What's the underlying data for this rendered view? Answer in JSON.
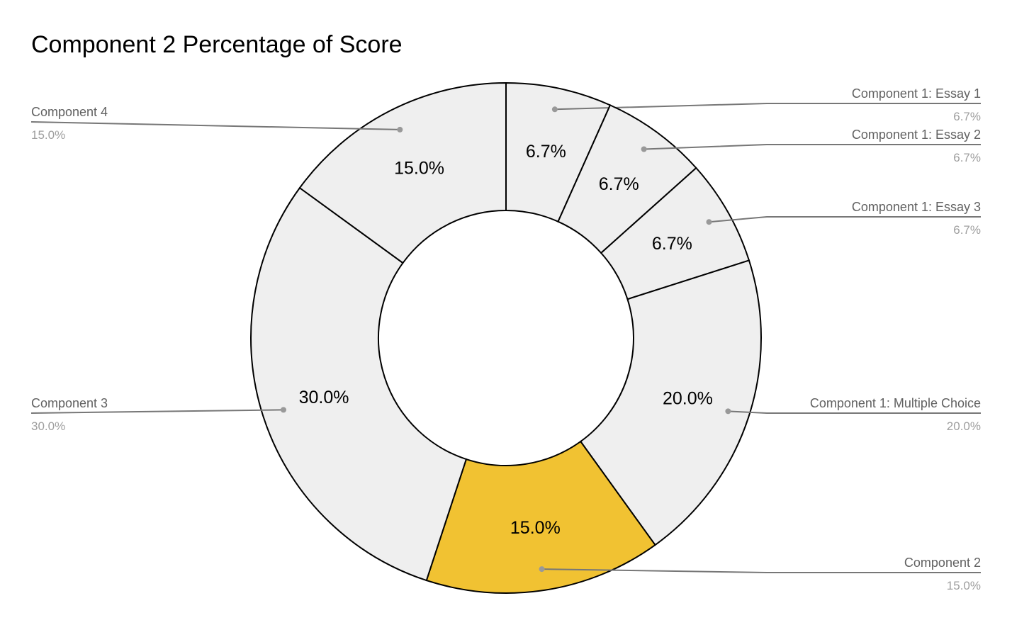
{
  "chart_data": {
    "type": "pie",
    "variant": "donut",
    "title": "Component 2 Percentage of Score",
    "slices": [
      {
        "label": "Component 1: Essay 1",
        "value": 6.7,
        "display": "6.7%",
        "color": "#efefef"
      },
      {
        "label": "Component 1: Essay 2",
        "value": 6.7,
        "display": "6.7%",
        "color": "#efefef"
      },
      {
        "label": "Component 1: Essay 3",
        "value": 6.7,
        "display": "6.7%",
        "color": "#efefef"
      },
      {
        "label": "Component 1: Multiple Choice",
        "value": 20.0,
        "display": "20.0%",
        "color": "#efefef"
      },
      {
        "label": "Component 2",
        "value": 15.0,
        "display": "15.0%",
        "color": "#f1c232"
      },
      {
        "label": "Component 3",
        "value": 30.0,
        "display": "30.0%",
        "color": "#efefef"
      },
      {
        "label": "Component 4",
        "value": 15.0,
        "display": "15.0%",
        "color": "#efefef"
      }
    ],
    "highlighted_slice": "Component 2",
    "legend": "callout labels"
  }
}
